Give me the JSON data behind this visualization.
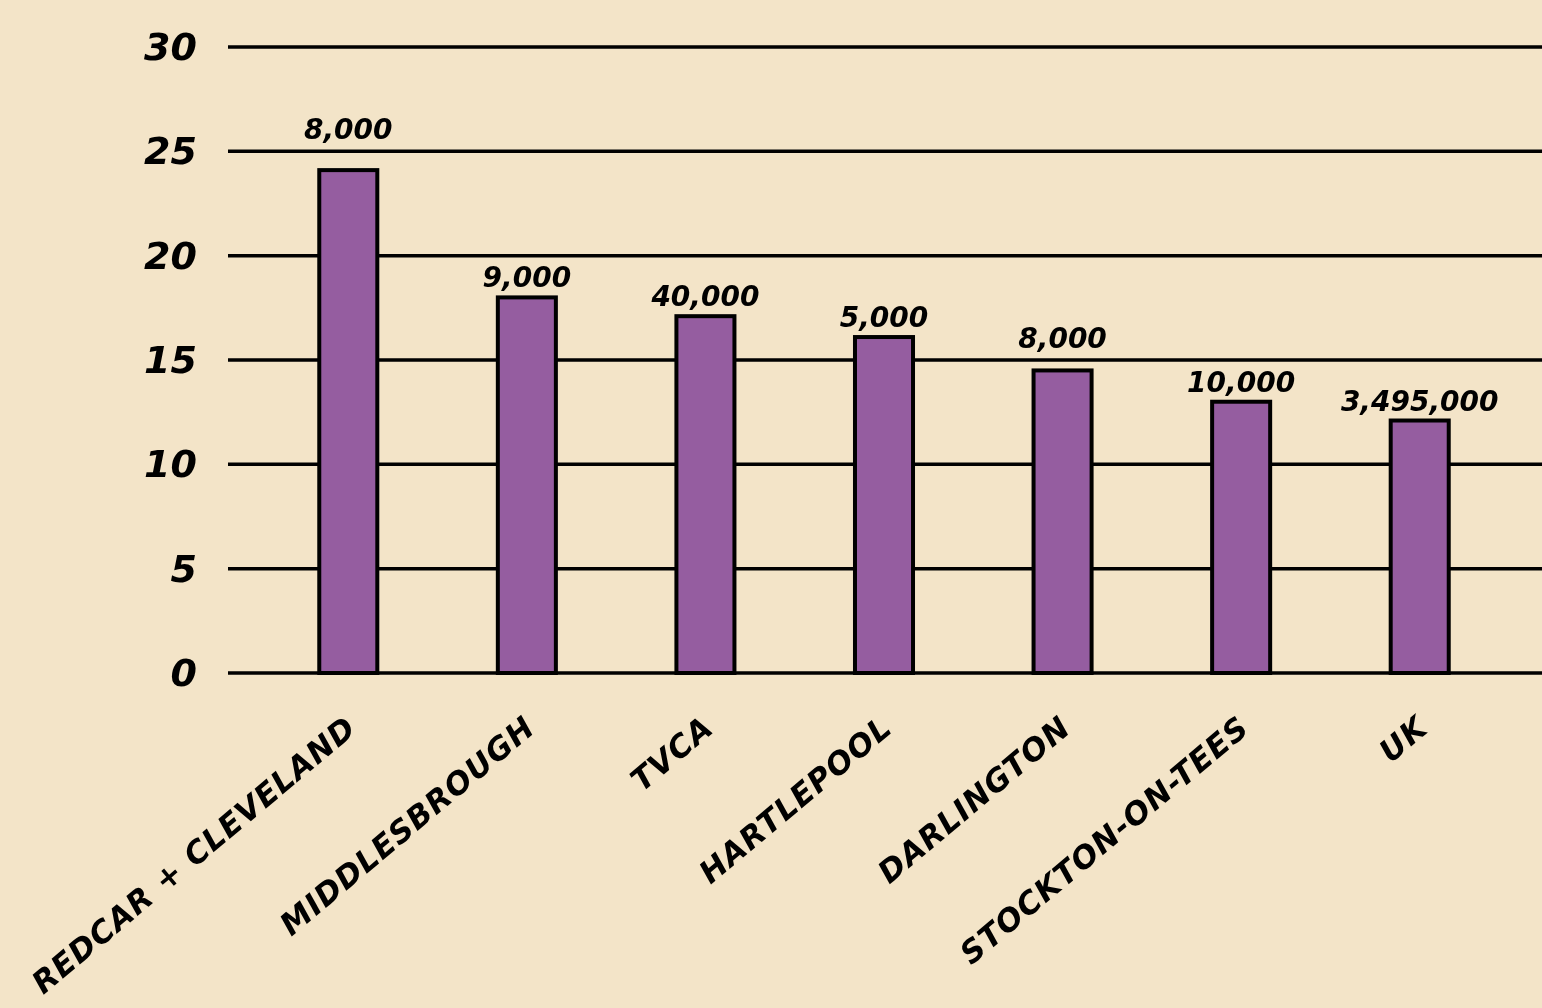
{
  "chart_data": {
    "type": "bar",
    "categories": [
      "REDCAR + CLEVELAND",
      "MIDDLESBROUGH",
      "TVCA",
      "HARTLEPOOL",
      "DARLINGTON",
      "STOCKTON-ON-TEES",
      "UK"
    ],
    "values": [
      24.1,
      18.0,
      17.1,
      16.1,
      14.5,
      13.0,
      12.1
    ],
    "annotations": [
      {
        "text": "8,000",
        "x": "REDCAR + CLEVELAND",
        "y": 24.1
      },
      {
        "text": "9,000",
        "x": "MIDDLESBROUGH",
        "y": 18.0
      },
      {
        "text": "40,000",
        "x": "TVCA",
        "y": 17.1
      },
      {
        "text": "5,000",
        "x": "HARTLEPOOL",
        "y": 16.1
      },
      {
        "text": "8,000",
        "x": "DARLINGTON",
        "y": 14.5
      },
      {
        "text": "10,000",
        "x": "STOCKTON-ON-TEES",
        "y": 13.0
      },
      {
        "text": "3,495,000",
        "x": "UK",
        "y": 12.1
      }
    ],
    "color": "#955da0",
    "ylim": [
      0,
      30
    ],
    "yticks": [
      0,
      5,
      10,
      15,
      20,
      25,
      30
    ],
    "grid": "y"
  }
}
